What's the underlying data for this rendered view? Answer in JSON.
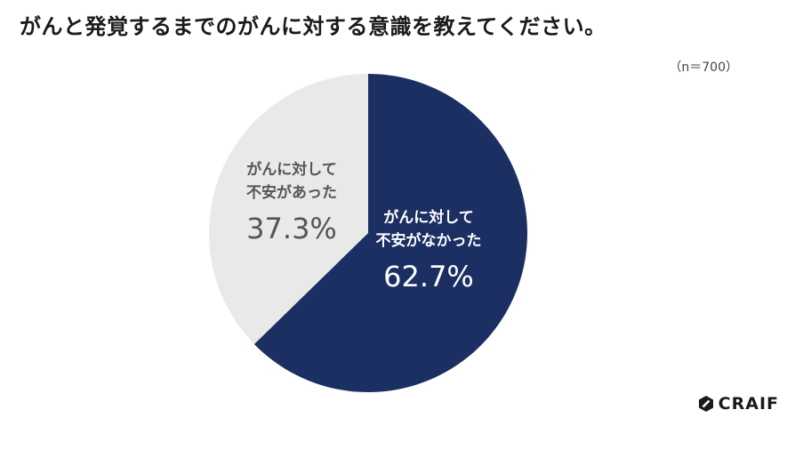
{
  "title": "がんと発覚するまでのがんに対する意識を教えてください。",
  "sample_size": "（n＝700）",
  "brand": {
    "name": "CRAIF"
  },
  "colors": {
    "dark": "#1c2f63",
    "light": "#e9e9e9",
    "dark_label": "#ffffff",
    "light_label": "#555555"
  },
  "chart_data": {
    "type": "pie",
    "start": "12 o'clock",
    "direction": "clockwise",
    "slices": [
      {
        "label_line1": "がんに対して",
        "label_line2": "不安がなかった",
        "value": 62.7,
        "value_label": "62.7%",
        "color": "#1c2f63",
        "text_color": "#ffffff"
      },
      {
        "label_line1": "がんに対して",
        "label_line2": "不安があった",
        "value": 37.3,
        "value_label": "37.3%",
        "color": "#e9e9e9",
        "text_color": "#555555"
      }
    ]
  }
}
